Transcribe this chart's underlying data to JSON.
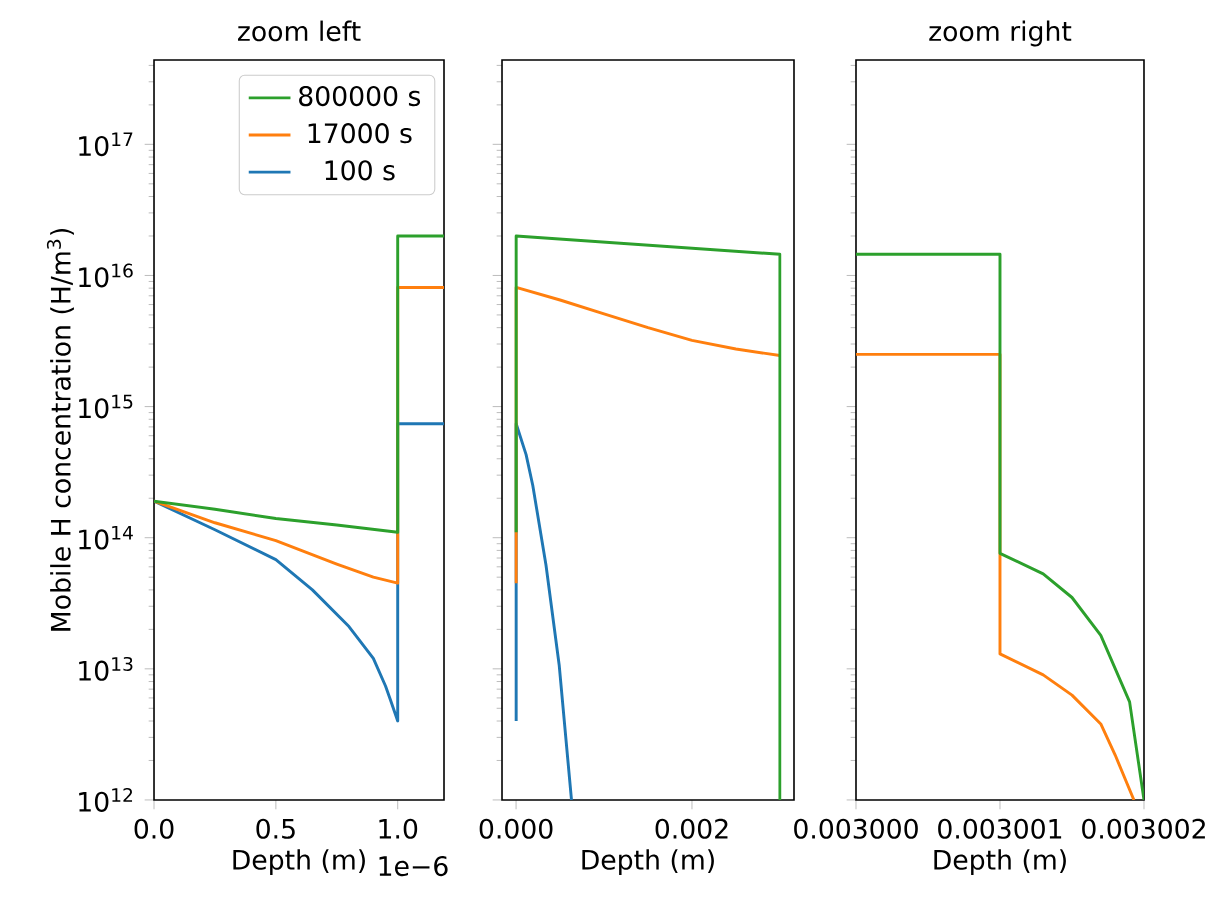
{
  "chart_data": [
    {
      "type": "line",
      "title": "zoom left",
      "xlabel": "Depth (m)",
      "ylabel": "Mobile H concentration (H/m$^{3}$)",
      "annotations": [
        "1e−6"
      ],
      "log": "y",
      "legend": "top right",
      "xlim": [
        0,
        1.19
      ],
      "xticks": [
        {
          "value": 0,
          "label": "0.0"
        },
        {
          "value": 0.5,
          "label": "0.5"
        },
        {
          "value": 1,
          "label": "1.0"
        }
      ],
      "ylim": [
        1000000000000.0,
        4.4e+17
      ],
      "yticks": [
        {
          "value": 1000000000000.0,
          "label": "10$^{12}$"
        },
        {
          "value": 10000000000000.0,
          "label": "10$^{13}$"
        },
        {
          "value": 100000000000000.0,
          "label": "10$^{14}$"
        },
        {
          "value": 1000000000000000.0,
          "label": "10$^{15}$"
        },
        {
          "value": 1e+16,
          "label": "10$^{16}$"
        },
        {
          "value": 1e+17,
          "label": "10$^{17}$"
        }
      ],
      "series": [
        {
          "name": "100 s",
          "color": "#1f77b4",
          "x": [
            0,
            0.25,
            0.5,
            0.65,
            0.8,
            0.9,
            0.95,
            0.97,
            1,
            1,
            1.19
          ],
          "values": [
            190000000000000.0,
            115000000000000.0,
            68000000000000.0,
            40000000000000.0,
            21000000000000.0,
            12000000000000.0,
            7400000000000.0,
            5800000000000.0,
            4000000000000.0,
            740000000000000.0,
            740000000000000.0
          ]
        },
        {
          "name": "17000 s",
          "color": "#ff7f0e",
          "x": [
            0,
            0.25,
            0.5,
            0.75,
            0.9,
            1,
            1,
            1.19
          ],
          "values": [
            190000000000000.0,
            130000000000000.0,
            95000000000000.0,
            63000000000000.0,
            50000000000000.0,
            45000000000000.0,
            8100000000000000.0,
            8100000000000000.0
          ]
        },
        {
          "name": "800000 s",
          "color": "#2ca02c",
          "x": [
            0,
            0.25,
            0.5,
            0.75,
            1,
            1,
            1.19
          ],
          "values": [
            190000000000000.0,
            165000000000000.0,
            140000000000000.0,
            125000000000000.0,
            110000000000000.0,
            2e+16,
            2e+16
          ]
        }
      ]
    },
    {
      "type": "line",
      "xlabel": "Depth (m)",
      "log": "y",
      "tick_labels": "x",
      "xlim": [
        -0.00016,
        0.00316
      ],
      "xticks": [
        {
          "value": 0,
          "label": "0.000"
        },
        {
          "value": 0.002,
          "label": "0.002"
        }
      ],
      "ylim": [
        1000000000000.0,
        4.4e+17
      ],
      "yticks": [
        1000000000000.0,
        10000000000000.0,
        100000000000000.0,
        1000000000000000.0,
        1e+16,
        1e+17
      ],
      "series": [
        {
          "color": "#1f77b4",
          "x": [
            1e-06,
            1e-06,
            0.000114,
            0.00019,
            0.00034,
            0.00049,
            0.00063
          ],
          "values": [
            4000000000000.0,
            740000000000000.0,
            430000000000000.0,
            250000000000000.0,
            62000000000000.0,
            10700000000000.0,
            1000000000000.0
          ]
        },
        {
          "color": "#ff7f0e",
          "x": [
            1e-06,
            1e-06,
            0.0005,
            0.001,
            0.0015,
            0.002,
            0.0025,
            0.003
          ],
          "values": [
            45000000000000.0,
            8100000000000000.0,
            6500000000000000.0,
            5100000000000000.0,
            4000000000000000.0,
            3200000000000000.0,
            2750000000000000.0,
            2450000000000000.0
          ]
        },
        {
          "color": "#2ca02c",
          "x": [
            1e-06,
            1e-06,
            0.003,
            0.003
          ],
          "values": [
            110000000000000.0,
            2e+16,
            1.45e+16,
            1000000000000.0
          ]
        }
      ]
    },
    {
      "type": "line",
      "title": "zoom right",
      "xlabel": "Depth (m)",
      "log": "y",
      "tick_labels": "x",
      "xlim": [
        0.003,
        0.003002
      ],
      "xticks": [
        {
          "value": 0.003,
          "label": "0.003000"
        },
        {
          "value": 0.003001,
          "label": "0.003001"
        },
        {
          "value": 0.003002,
          "label": "0.003002"
        }
      ],
      "ylim": [
        1000000000000.0,
        4.4e+17
      ],
      "yticks": [
        1000000000000.0,
        10000000000000.0,
        100000000000000.0,
        1000000000000000.0,
        1e+16,
        1e+17
      ],
      "series": [
        {
          "color": "#ff7f0e",
          "x": [
            0.003,
            0.003001,
            0.003001,
            0.0030013,
            0.0030015,
            0.0030017,
            0.0030018,
            0.00300193
          ],
          "values": [
            2500000000000000.0,
            2500000000000000.0,
            13000000000000.0,
            9000000000000.0,
            6300000000000.0,
            3800000000000.0,
            2200000000000.0,
            1000000000000.0
          ]
        },
        {
          "color": "#2ca02c",
          "x": [
            0.003,
            0.003001,
            0.003001,
            0.0030013,
            0.0030015,
            0.0030017,
            0.0030019,
            0.003002
          ],
          "values": [
            1.45e+16,
            1.45e+16,
            76000000000000.0,
            53000000000000.0,
            35000000000000.0,
            18000000000000.0,
            5600000000000.0,
            1000000000000.0
          ]
        }
      ]
    }
  ]
}
